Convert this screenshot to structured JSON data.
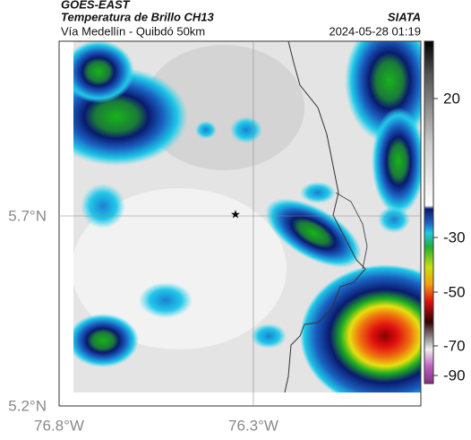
{
  "header": {
    "title": "GOES-EAST",
    "subtitle": "Temperatura de Brillo CH13",
    "source": "SIATA",
    "route": "Vía Medellín - Quibdó 50km",
    "timestamp": "2024-05-28 01:19"
  },
  "map": {
    "lat_labels": [
      "5.7°N",
      "5.2°N"
    ],
    "lon_labels": [
      "76.8°W",
      "76.3°W"
    ]
  },
  "colorbar": {
    "ticks": [
      20,
      -30,
      -50,
      -70,
      -90
    ]
  }
}
